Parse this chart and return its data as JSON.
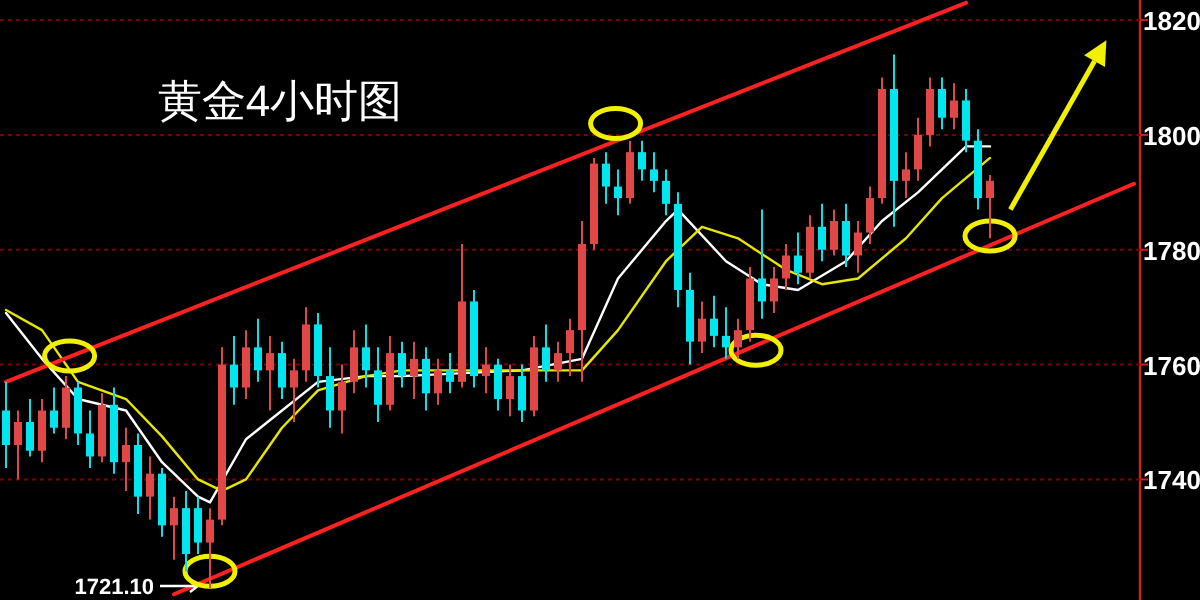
{
  "chart_data": {
    "type": "candlestick",
    "title": "黄金4小时图",
    "categories": [
      null,
      null,
      null,
      null,
      null,
      null,
      null,
      null,
      null,
      null,
      null,
      null,
      null,
      null,
      null,
      null,
      null,
      null,
      null,
      null,
      null,
      null,
      null,
      null,
      null,
      null,
      null,
      null,
      null,
      null,
      null,
      null,
      null,
      null,
      null,
      null,
      null,
      null,
      null,
      null,
      null,
      null,
      null,
      null,
      null,
      null,
      null,
      null,
      null,
      null,
      null,
      null,
      null,
      null,
      null,
      null,
      null,
      null,
      null,
      null,
      null,
      null,
      null,
      null,
      null,
      null,
      null,
      null,
      null,
      null,
      null,
      null,
      null,
      null,
      null,
      null,
      null,
      null,
      null,
      null,
      null,
      null,
      null,
      null,
      null,
      null,
      null,
      null,
      null,
      null,
      null,
      null,
      null,
      null,
      null
    ],
    "series": [
      {
        "type": "candlestick",
        "ohlc": [
          [
            1752,
            1757,
            1742,
            1746
          ],
          [
            1746,
            1752,
            1740,
            1750
          ],
          [
            1750,
            1754,
            1744,
            1745
          ],
          [
            1745,
            1754,
            1743,
            1752
          ],
          [
            1752,
            1756,
            1748,
            1749
          ],
          [
            1749,
            1758,
            1747,
            1756
          ],
          [
            1756,
            1757,
            1746,
            1748
          ],
          [
            1748,
            1752,
            1742,
            1744
          ],
          [
            1744,
            1755,
            1743,
            1753
          ],
          [
            1753,
            1756,
            1741,
            1743
          ],
          [
            1743,
            1749,
            1738,
            1746
          ],
          [
            1746,
            1748,
            1734,
            1737
          ],
          [
            1737,
            1744,
            1733,
            1741
          ],
          [
            1741,
            1742,
            1730,
            1732
          ],
          [
            1732,
            1737,
            1726,
            1735
          ],
          [
            1735,
            1738,
            1724,
            1727
          ],
          [
            1735,
            1737,
            1727,
            1729
          ],
          [
            1729,
            1735,
            1721.1,
            1733
          ],
          [
            1733,
            1763,
            1732,
            1760
          ],
          [
            1760,
            1765,
            1753,
            1756
          ],
          [
            1756,
            1766,
            1754,
            1763
          ],
          [
            1763,
            1768,
            1757,
            1759
          ],
          [
            1759,
            1765,
            1752,
            1762
          ],
          [
            1762,
            1764,
            1754,
            1756
          ],
          [
            1756,
            1761,
            1750,
            1759
          ],
          [
            1759,
            1770,
            1757,
            1767
          ],
          [
            1767,
            1769,
            1756,
            1758
          ],
          [
            1758,
            1763,
            1749,
            1752
          ],
          [
            1752,
            1760,
            1748,
            1757
          ],
          [
            1757,
            1766,
            1755,
            1763
          ],
          [
            1763,
            1767,
            1756,
            1759
          ],
          [
            1759,
            1763,
            1750,
            1753
          ],
          [
            1753,
            1765,
            1752,
            1762
          ],
          [
            1762,
            1764,
            1756,
            1758
          ],
          [
            1758,
            1764,
            1754,
            1761
          ],
          [
            1761,
            1763,
            1752,
            1755
          ],
          [
            1755,
            1761,
            1753,
            1759
          ],
          [
            1759,
            1762,
            1755,
            1757
          ],
          [
            1757,
            1781,
            1756,
            1771
          ],
          [
            1771,
            1773,
            1756,
            1758
          ],
          [
            1758,
            1763,
            1755,
            1760
          ],
          [
            1760,
            1761,
            1752,
            1754
          ],
          [
            1754,
            1760,
            1751,
            1758
          ],
          [
            1758,
            1760,
            1750,
            1752
          ],
          [
            1752,
            1765,
            1751,
            1763
          ],
          [
            1763,
            1767,
            1757,
            1759
          ],
          [
            1759,
            1764,
            1757,
            1762
          ],
          [
            1762,
            1768,
            1758,
            1766
          ],
          [
            1766,
            1785,
            1757,
            1781
          ],
          [
            1781,
            1796,
            1780,
            1795
          ],
          [
            1795,
            1797,
            1788,
            1791
          ],
          [
            1791,
            1794,
            1786,
            1789
          ],
          [
            1789,
            1799,
            1788,
            1797
          ],
          [
            1797,
            1799,
            1792,
            1794
          ],
          [
            1794,
            1797,
            1790,
            1792
          ],
          [
            1792,
            1794,
            1786,
            1788
          ],
          [
            1788,
            1790,
            1770,
            1773
          ],
          [
            1773,
            1776,
            1760,
            1764
          ],
          [
            1764,
            1771,
            1762,
            1768
          ],
          [
            1768,
            1772,
            1763,
            1765
          ],
          [
            1765,
            1770,
            1761,
            1763
          ],
          [
            1763,
            1768,
            1761,
            1766
          ],
          [
            1766,
            1777,
            1764,
            1775
          ],
          [
            1775,
            1787,
            1768,
            1771
          ],
          [
            1771,
            1777,
            1769,
            1775
          ],
          [
            1775,
            1781,
            1773,
            1779
          ],
          [
            1779,
            1783,
            1774,
            1776
          ],
          [
            1776,
            1786,
            1775,
            1784
          ],
          [
            1784,
            1788,
            1778,
            1780
          ],
          [
            1780,
            1787,
            1779,
            1785
          ],
          [
            1785,
            1788,
            1777,
            1779
          ],
          [
            1779,
            1785,
            1776,
            1783
          ],
          [
            1783,
            1791,
            1781,
            1789
          ],
          [
            1789,
            1810,
            1788,
            1808
          ],
          [
            1808,
            1814,
            1784,
            1792
          ],
          [
            1792,
            1797,
            1789,
            1794
          ],
          [
            1794,
            1803,
            1792,
            1800
          ],
          [
            1800,
            1810,
            1798,
            1808
          ],
          [
            1808,
            1810,
            1801,
            1803
          ],
          [
            1803,
            1809,
            1801,
            1806
          ],
          [
            1806,
            1808,
            1797,
            1799
          ],
          [
            1799,
            1801,
            1787,
            1789
          ],
          [
            1789,
            1793,
            1782,
            1792
          ],
          null,
          null,
          null,
          null,
          null,
          null,
          null,
          null,
          null,
          null,
          null,
          null
        ],
        "colors": [
          "#00e5ee",
          "#e04848",
          "#00e5ee",
          "#e04848",
          "#00e5ee",
          "#e04848",
          "#00e5ee",
          "#00e5ee",
          "#e04848",
          "#00e5ee",
          "#e04848",
          "#00e5ee",
          "#e04848",
          "#00e5ee",
          "#e04848",
          "#00e5ee",
          "#00e5ee",
          "#e04848",
          "#e04848",
          "#00e5ee",
          "#e04848",
          "#00e5ee",
          "#e04848",
          "#00e5ee",
          "#e04848",
          "#e04848",
          "#00e5ee",
          "#00e5ee",
          "#e04848",
          "#e04848",
          "#00e5ee",
          "#00e5ee",
          "#e04848",
          "#00e5ee",
          "#e04848",
          "#00e5ee",
          "#e04848",
          "#00e5ee",
          "#e04848",
          "#00e5ee",
          "#e04848",
          "#00e5ee",
          "#e04848",
          "#00e5ee",
          "#e04848",
          "#00e5ee",
          "#e04848",
          "#e04848",
          "#e04848",
          "#e04848",
          "#00e5ee",
          "#00e5ee",
          "#e04848",
          "#00e5ee",
          "#00e5ee",
          "#00e5ee",
          "#00e5ee",
          "#00e5ee",
          "#e04848",
          "#00e5ee",
          "#00e5ee",
          "#e04848",
          "#e04848",
          "#00e5ee",
          "#e04848",
          "#e04848",
          "#00e5ee",
          "#e04848",
          "#00e5ee",
          "#e04848",
          "#00e5ee",
          "#e04848",
          "#e04848",
          "#e04848",
          "#00e5ee",
          "#e04848",
          "#e04848",
          "#e04848",
          "#00e5ee",
          "#e04848",
          "#00e5ee",
          "#00e5ee",
          "#e04848",
          null,
          null,
          null,
          null,
          null,
          null,
          null,
          null,
          null,
          null,
          null,
          null
        ]
      },
      {
        "type": "line",
        "color": "#ffffff",
        "values": [
          1769,
          null,
          null,
          1761,
          null,
          null,
          1754,
          null,
          null,
          null,
          1752,
          null,
          null,
          1743,
          null,
          null,
          1737,
          1736,
          null,
          null,
          1747,
          null,
          null,
          1752,
          null,
          null,
          1757,
          null,
          null,
          null,
          1758,
          null,
          null,
          1758,
          null,
          null,
          null,
          null,
          null,
          null,
          null,
          null,
          null,
          1759,
          null,
          null,
          null,
          null,
          1761,
          null,
          null,
          1775,
          null,
          null,
          null,
          1785,
          1787,
          null,
          null,
          null,
          1778,
          null,
          null,
          1774,
          null,
          null,
          1773,
          null,
          null,
          null,
          1778,
          null,
          null,
          1785,
          null,
          null,
          1790,
          null,
          null,
          null,
          1798,
          null,
          1798,
          null,
          null,
          null,
          null,
          null,
          null,
          null,
          null,
          null,
          null,
          null,
          null
        ]
      },
      {
        "type": "line",
        "color": "#e6e600",
        "values": [
          1769.5,
          null,
          null,
          1766,
          null,
          null,
          1757,
          null,
          null,
          null,
          1754,
          null,
          null,
          1747.5,
          null,
          null,
          1740,
          null,
          1738,
          null,
          1740,
          null,
          null,
          1749,
          null,
          null,
          1755.5,
          null,
          null,
          null,
          1758,
          null,
          null,
          1759,
          null,
          null,
          null,
          null,
          null,
          null,
          null,
          null,
          null,
          1759,
          null,
          null,
          null,
          null,
          1759,
          null,
          null,
          1766,
          null,
          null,
          null,
          1778,
          null,
          null,
          1784,
          null,
          null,
          1782,
          null,
          null,
          null,
          1776.5,
          null,
          null,
          1774,
          null,
          null,
          1775,
          null,
          null,
          null,
          1782,
          null,
          null,
          1789,
          null,
          null,
          null,
          1796,
          null,
          null,
          null,
          null,
          null,
          null,
          null,
          null,
          null,
          null,
          null,
          null
        ]
      },
      {
        "type": "line",
        "color": "#ff2020",
        "values": [
          1757,
          null,
          null,
          null,
          null,
          null,
          null,
          null,
          null,
          null,
          null,
          null,
          null,
          null,
          null,
          null,
          null,
          null,
          null,
          null,
          null,
          null,
          null,
          null,
          null,
          null,
          null,
          null,
          null,
          null,
          null,
          null,
          null,
          null,
          null,
          null,
          null,
          null,
          null,
          null,
          null,
          null,
          null,
          null,
          null,
          null,
          null,
          null,
          null,
          null,
          null,
          null,
          null,
          null,
          null,
          null,
          null,
          null,
          null,
          null,
          null,
          null,
          null,
          null,
          null,
          null,
          null,
          null,
          null,
          null,
          null,
          null,
          null,
          null,
          null,
          null,
          null,
          null,
          null,
          null,
          1823,
          null,
          null,
          null,
          null,
          null,
          null,
          null,
          null,
          null,
          null,
          null,
          null,
          null,
          null
        ]
      },
      {
        "type": "line",
        "color": "#ff2020",
        "values": [
          null,
          null,
          null,
          null,
          null,
          null,
          null,
          null,
          null,
          null,
          null,
          null,
          null,
          null,
          1720,
          null,
          null,
          null,
          null,
          null,
          null,
          null,
          null,
          null,
          null,
          null,
          null,
          null,
          null,
          null,
          null,
          null,
          null,
          null,
          null,
          null,
          null,
          null,
          null,
          null,
          null,
          null,
          null,
          null,
          null,
          null,
          null,
          null,
          null,
          null,
          null,
          null,
          null,
          null,
          null,
          null,
          null,
          null,
          null,
          null,
          null,
          null,
          null,
          null,
          null,
          null,
          null,
          null,
          null,
          null,
          null,
          null,
          null,
          null,
          null,
          null,
          null,
          null,
          null,
          null,
          null,
          null,
          null,
          null,
          null,
          null,
          null,
          null,
          null,
          null,
          null,
          null,
          null,
          null,
          1791.5
        ]
      }
    ],
    "ylim": [
      1719,
      1823.5
    ],
    "yticks": [
      1740,
      1760,
      1780,
      1800,
      1820
    ],
    "grid": "y",
    "annotations": [
      "1721.10"
    ]
  }
}
